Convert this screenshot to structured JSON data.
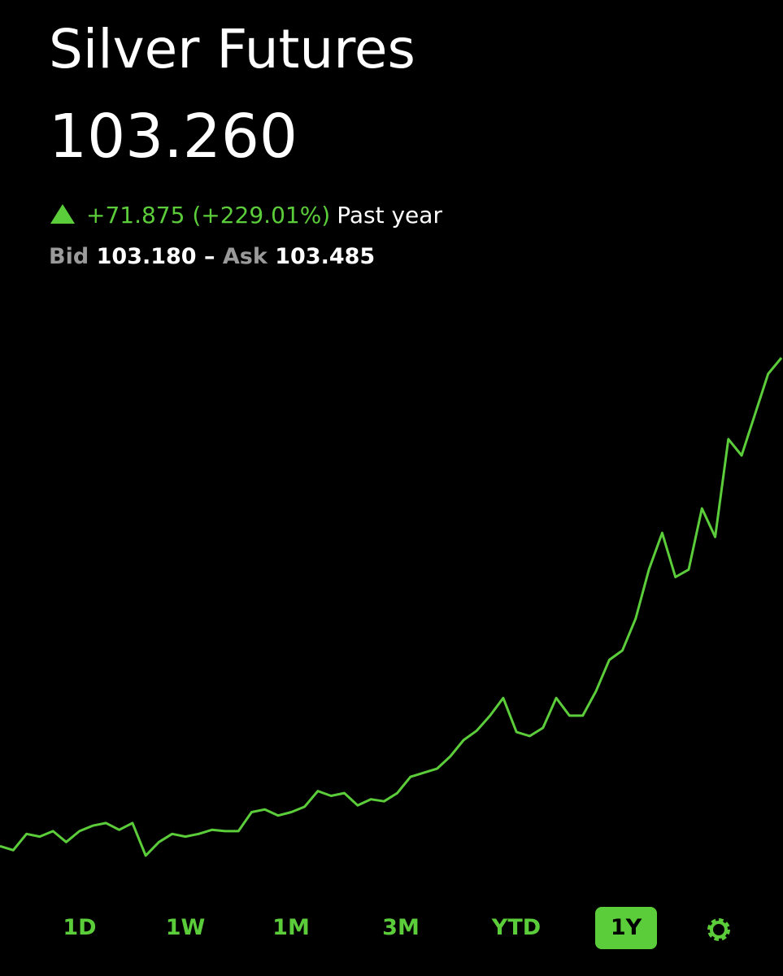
{
  "header": {
    "title": "Silver Futures",
    "price": "103.260",
    "change": "+71.875 (+229.01%)",
    "period": "Past year",
    "bid_label": "Bid",
    "bid": "103.180",
    "separator": "–",
    "ask_label": "Ask",
    "ask": "103.485"
  },
  "chart_data": {
    "type": "line",
    "color": "#5ccd3a",
    "values": [
      31.4,
      30.8,
      33.2,
      32.8,
      33.6,
      32.0,
      33.6,
      34.4,
      34.8,
      33.8,
      34.8,
      30.0,
      32.0,
      33.2,
      32.8,
      33.2,
      33.8,
      33.6,
      33.6,
      36.4,
      36.8,
      35.9,
      36.4,
      37.2,
      39.5,
      38.8,
      39.2,
      37.4,
      38.3,
      38.0,
      39.2,
      41.6,
      42.2,
      42.8,
      44.6,
      47.0,
      48.4,
      50.6,
      53.2,
      48.2,
      47.6,
      48.8,
      53.2,
      50.6,
      50.6,
      54.2,
      58.8,
      60.2,
      64.9,
      72.1,
      77.5,
      71.0,
      72.1,
      81.1,
      76.9,
      91.3,
      88.9,
      94.9,
      100.9,
      103.26
    ]
  },
  "ranges": {
    "buttons": [
      "1D",
      "1W",
      "1M",
      "3M",
      "YTD",
      "1Y"
    ],
    "selected": 5
  }
}
